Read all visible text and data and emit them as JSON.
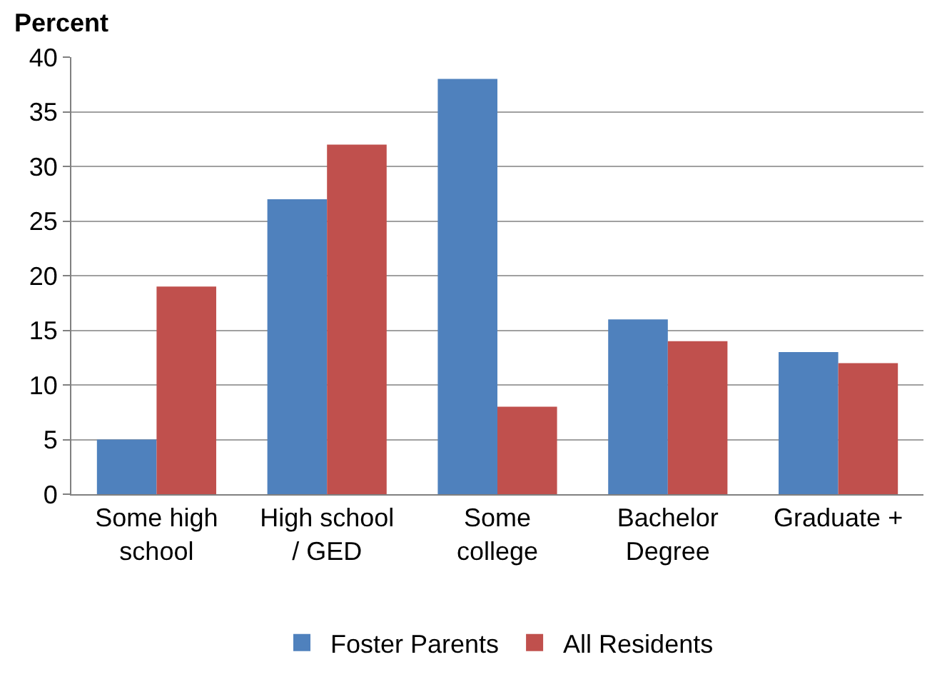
{
  "chart_data": {
    "type": "bar",
    "ylabel": "Percent",
    "categories": [
      "Some high\nschool",
      "High school\n/ GED",
      "Some\ncollege",
      "Bachelor\nDegree",
      "Graduate +"
    ],
    "series": [
      {
        "name": "Foster Parents",
        "color": "#4f81bd",
        "values": [
          5,
          27,
          38,
          16,
          13
        ]
      },
      {
        "name": "All Residents",
        "color": "#c0504d",
        "values": [
          19,
          32,
          8,
          14,
          12
        ]
      }
    ],
    "ylim": [
      0,
      40
    ],
    "yticks": [
      0,
      5,
      10,
      15,
      20,
      25,
      30,
      35,
      40
    ],
    "grid": "y",
    "legend": "bottom"
  }
}
